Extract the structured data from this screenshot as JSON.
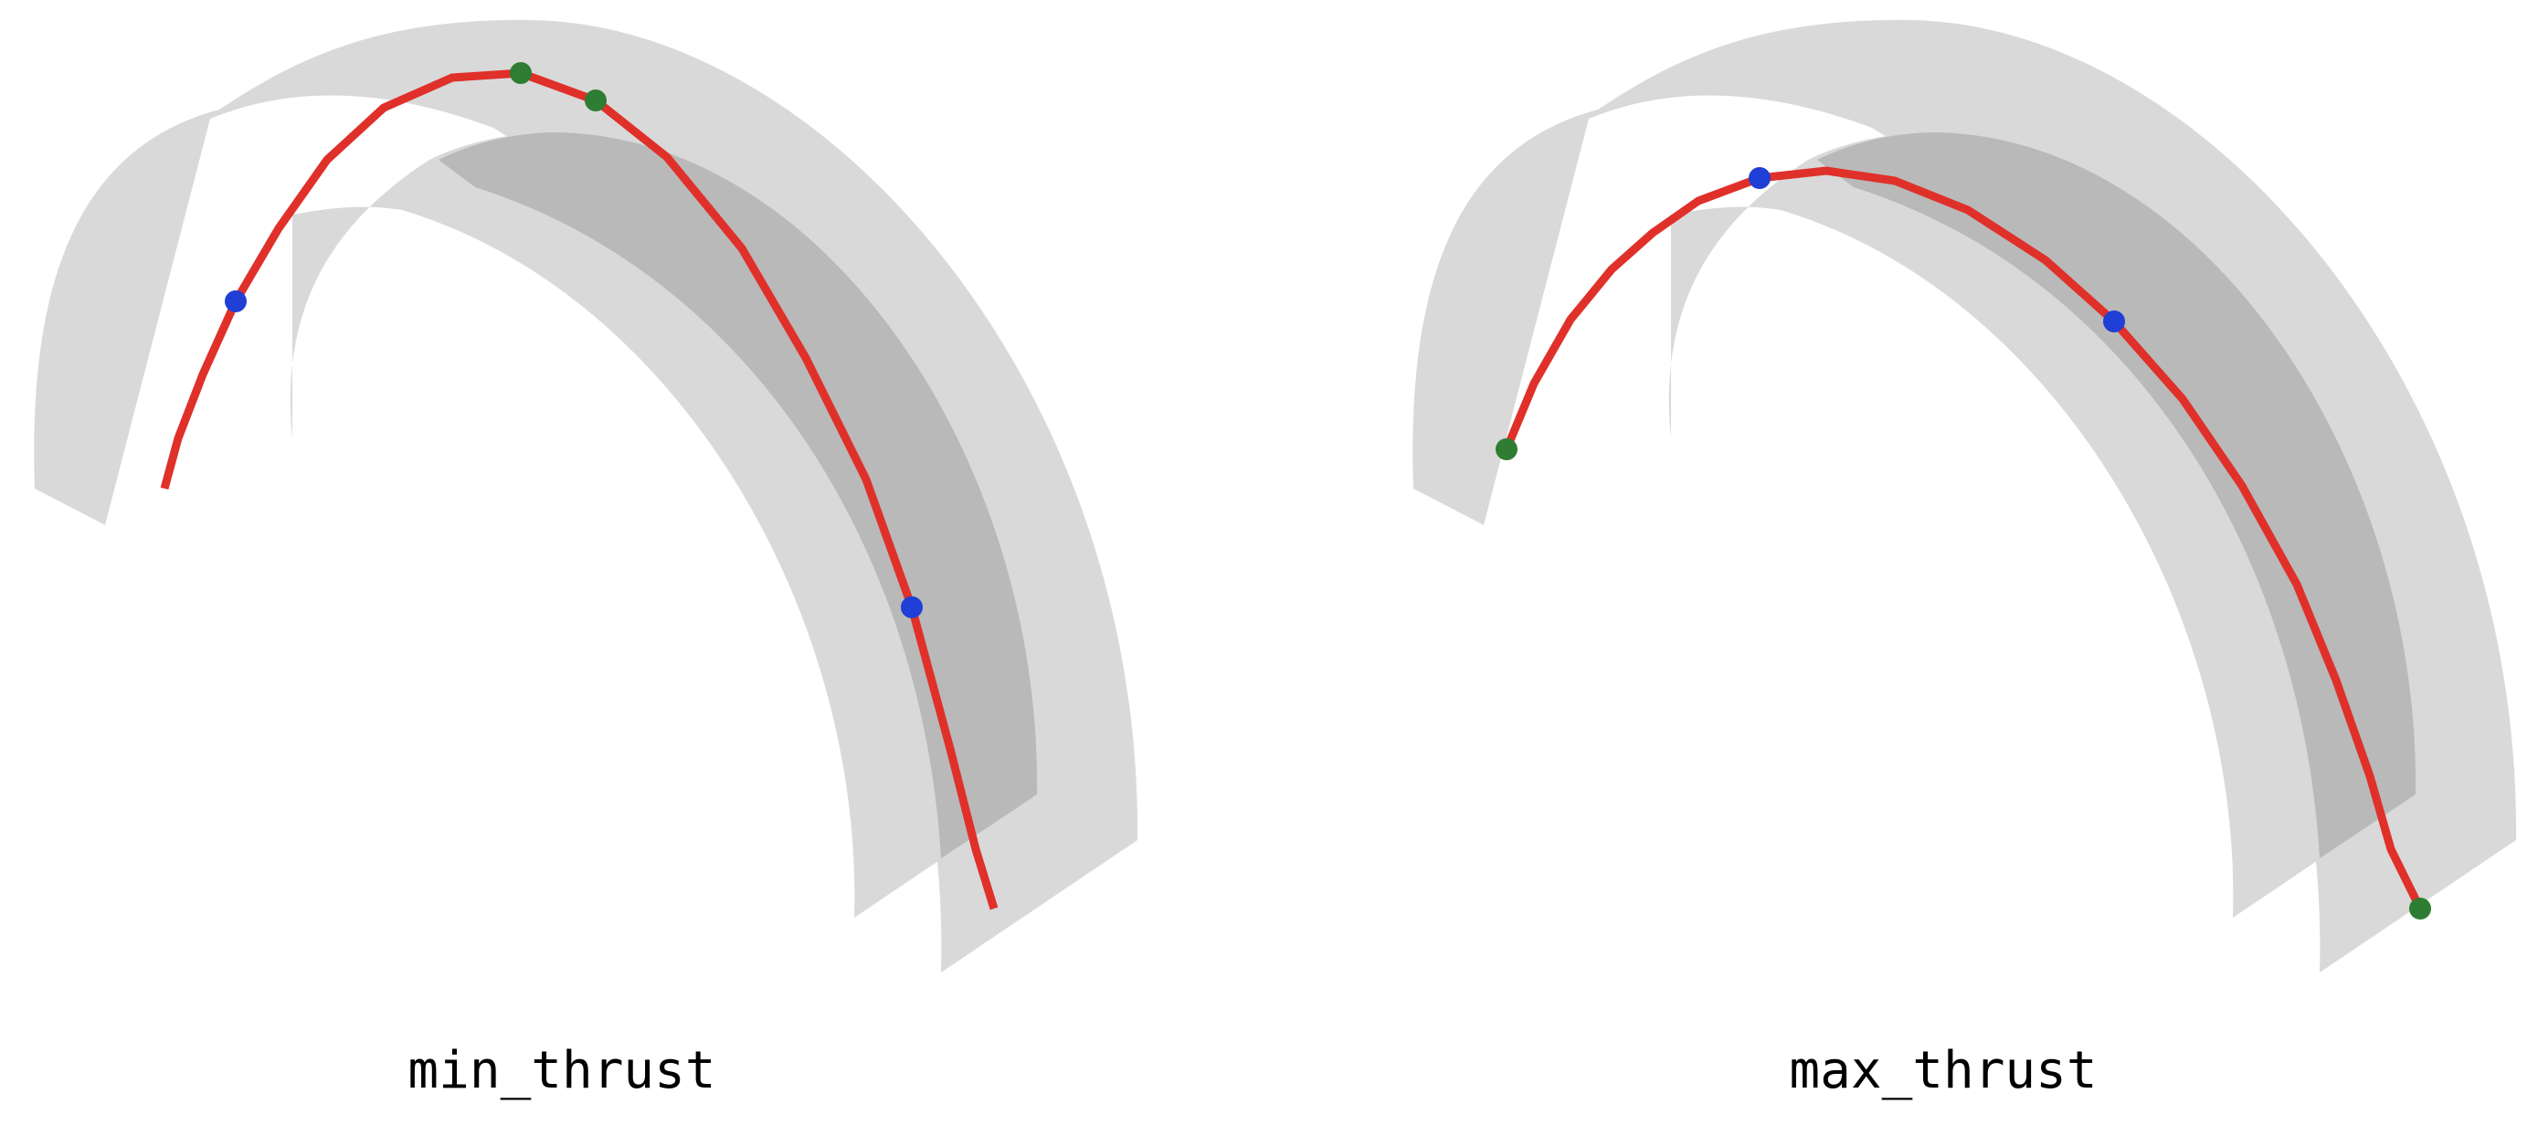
{
  "panels": [
    {
      "title": "min_thrust"
    },
    {
      "title": "max_thrust"
    }
  ],
  "colors": {
    "background": "#ffffff",
    "surface_light": "#d9d9d9",
    "surface_dark": "#b9b9b9",
    "trajectory": "#e0302a",
    "waypoint_green": "#2e7d32",
    "waypoint_blue": "#1f3fd6",
    "text": "#000000"
  }
}
